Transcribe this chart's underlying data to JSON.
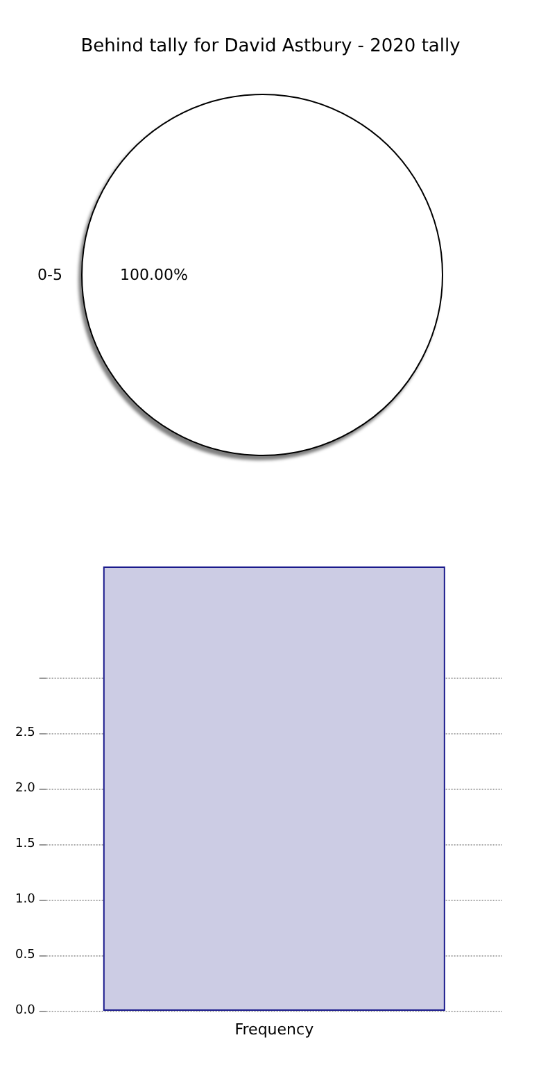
{
  "chart_data": [
    {
      "type": "pie",
      "title": "Behind tally for David Astbury - 2020 tally",
      "categories": [
        "0-5"
      ],
      "values": [
        100
      ],
      "colors": [
        "#ffffff"
      ],
      "value_labels": [
        "100.00%"
      ]
    },
    {
      "type": "bar",
      "categories": [
        "Frequency"
      ],
      "values": [
        4
      ],
      "color": "#cccce4",
      "ylim": [
        0,
        4
      ],
      "yticks": [
        {
          "value": 0,
          "label": "0.0"
        },
        0.5,
        {
          "value": 1,
          "label": "1.0"
        },
        1.5,
        {
          "value": 2,
          "label": "2.0"
        },
        2.5,
        {
          "value": 3,
          "label": null
        }
      ],
      "grid": "y"
    }
  ]
}
